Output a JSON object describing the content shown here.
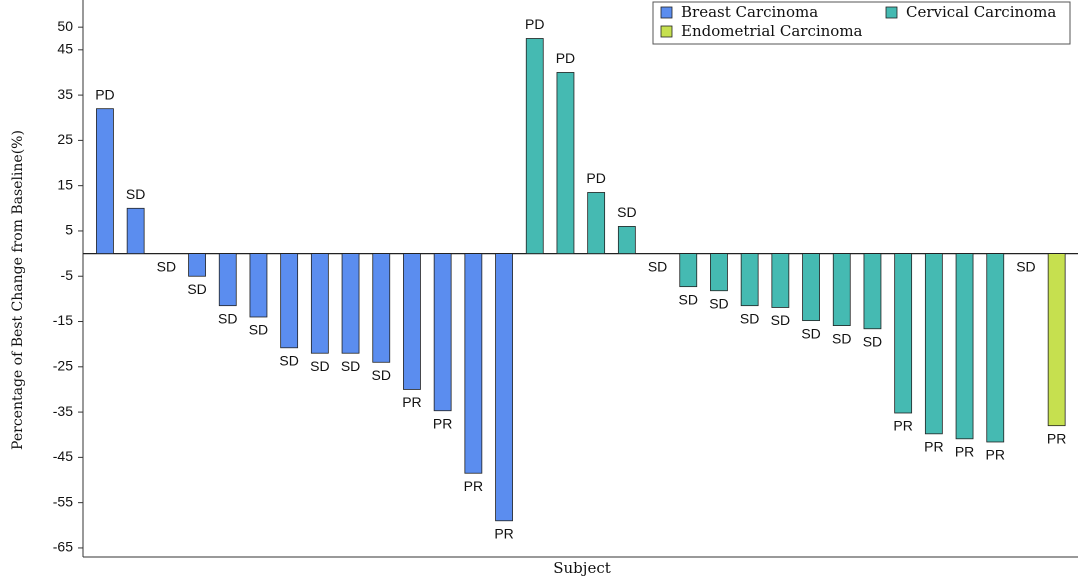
{
  "chart_data": {
    "type": "bar",
    "y_label": "Percentage of Best Change from Baseline(%)",
    "x_label": "Subject",
    "categories": [
      null,
      null,
      null,
      null,
      null,
      null,
      null,
      null,
      null,
      null,
      null,
      null,
      null,
      null,
      null,
      null,
      null,
      null,
      null,
      null,
      null,
      null,
      null,
      null,
      null,
      null,
      null,
      null,
      null,
      null,
      null,
      null
    ],
    "ylim": [
      -67,
      56
    ],
    "yticks": [
      50,
      45,
      35,
      25,
      15,
      5,
      -5,
      -15,
      -25,
      -35,
      -45,
      -55,
      -65
    ],
    "legend": "top-right",
    "series": [
      {
        "name": "Breast Carcinoma",
        "color": "#5b8def",
        "values": [
          32,
          10,
          0,
          -5,
          -11.5,
          -14,
          -20.8,
          -22,
          -22,
          -24,
          -30,
          -34.7,
          -48.5,
          -59,
          null,
          null,
          null,
          null,
          null,
          null,
          null,
          null,
          null,
          null,
          null,
          null,
          null,
          null,
          null,
          null,
          null,
          null
        ],
        "labels": [
          "PD",
          "SD",
          "SD",
          "SD",
          "SD",
          "SD",
          "SD",
          "SD",
          "SD",
          "SD",
          "PR",
          "PR",
          "PR",
          "PR",
          null,
          null,
          null,
          null,
          null,
          null,
          null,
          null,
          null,
          null,
          null,
          null,
          null,
          null,
          null,
          null,
          null,
          null
        ]
      },
      {
        "name": "Cervical Carcinoma",
        "color": "#45bab2",
        "values": [
          null,
          null,
          null,
          null,
          null,
          null,
          null,
          null,
          null,
          null,
          null,
          null,
          null,
          null,
          47.5,
          40,
          13.5,
          6,
          0,
          -7.3,
          -8.2,
          -11.5,
          -11.9,
          -14.8,
          -15.9,
          -16.6,
          -35.2,
          -39.8,
          -40.9,
          -41.6,
          null,
          null
        ],
        "labels": [
          null,
          null,
          null,
          null,
          null,
          null,
          null,
          null,
          null,
          null,
          null,
          null,
          null,
          null,
          "PD",
          "PD",
          "PD",
          "SD",
          "SD",
          "SD",
          "SD",
          "SD",
          "SD",
          "SD",
          "SD",
          "SD",
          "PR",
          "PR",
          "PR",
          "PR",
          null,
          null
        ]
      },
      {
        "name": "Endometrial Carcinoma",
        "color": "#c6e04f",
        "values": [
          null,
          null,
          null,
          null,
          null,
          null,
          null,
          null,
          null,
          null,
          null,
          null,
          null,
          null,
          null,
          null,
          null,
          null,
          null,
          null,
          null,
          null,
          null,
          null,
          null,
          null,
          null,
          null,
          null,
          null,
          0,
          -38
        ],
        "labels": [
          null,
          null,
          null,
          null,
          null,
          null,
          null,
          null,
          null,
          null,
          null,
          null,
          null,
          null,
          null,
          null,
          null,
          null,
          null,
          null,
          null,
          null,
          null,
          null,
          null,
          null,
          null,
          null,
          null,
          null,
          "SD",
          "PR"
        ]
      }
    ]
  }
}
